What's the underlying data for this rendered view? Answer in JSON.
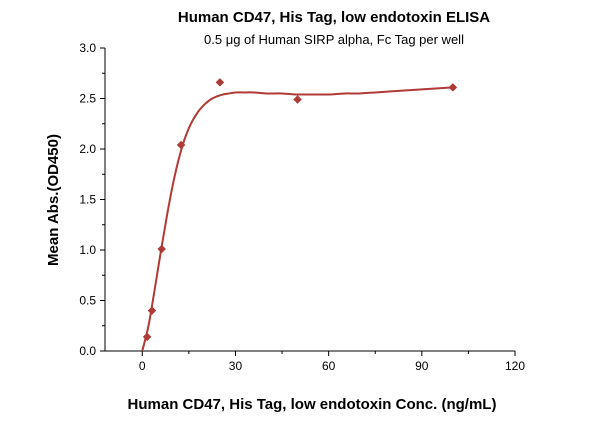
{
  "chart_data": {
    "type": "scatter",
    "title": "Human CD47, His Tag, low endotoxin ELISA",
    "subtitle": "0.5 μg of Human SIRP alpha, Fc Tag per well",
    "xlabel": "Human CD47, His Tag, low endotoxin Conc. (ng/mL)",
    "ylabel": "Mean Abs.(OD450)",
    "xlim": [
      -12,
      120
    ],
    "ylim": [
      0,
      3.0
    ],
    "x_ticks": [
      0,
      30,
      60,
      90,
      120
    ],
    "x_tick_labels": [
      "0",
      "30",
      "60",
      "90",
      "120"
    ],
    "y_ticks": [
      0,
      0.5,
      1.0,
      1.5,
      2.0,
      2.5,
      3.0
    ],
    "y_tick_labels": [
      "0.0",
      "0.5",
      "1.0",
      "1.5",
      "2.0",
      "2.5",
      "3.0"
    ],
    "grid": false,
    "legend": "none",
    "marker": "diamond",
    "color": "#b03a35",
    "series": [
      {
        "x": [
          1.563,
          3.125,
          6.25,
          12.5,
          25,
          50,
          100
        ],
        "y": [
          0.14,
          0.4,
          1.01,
          2.04,
          2.66,
          2.49,
          2.61
        ]
      }
    ],
    "fit_curve": {
      "x": [
        0,
        2,
        4,
        6,
        8,
        10,
        12,
        14,
        16,
        18,
        20,
        22,
        24,
        26,
        28,
        30,
        33,
        36,
        40,
        45,
        50,
        55,
        60,
        65,
        70,
        75,
        80,
        85,
        90,
        95,
        100
      ],
      "y": [
        0.0,
        0.25,
        0.61,
        0.99,
        1.35,
        1.67,
        1.93,
        2.13,
        2.27,
        2.37,
        2.44,
        2.49,
        2.52,
        2.54,
        2.55,
        2.56,
        2.56,
        2.56,
        2.55,
        2.55,
        2.54,
        2.54,
        2.54,
        2.55,
        2.55,
        2.56,
        2.57,
        2.58,
        2.59,
        2.6,
        2.61
      ]
    }
  }
}
